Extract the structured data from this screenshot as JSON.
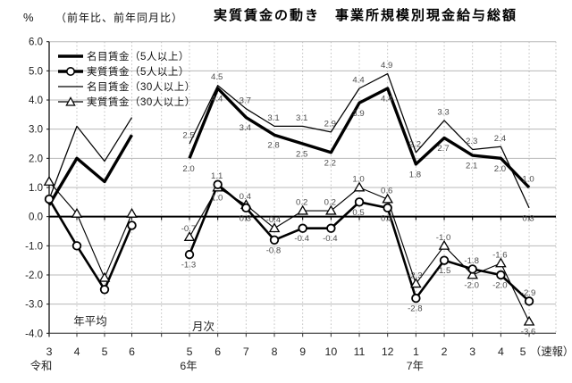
{
  "header": {
    "y_unit": "%",
    "subtitle": "（前年比、前年同月比）",
    "title": "実質賃金の動き　事業所規模別現金給与総額"
  },
  "chart_data": {
    "type": "line",
    "title": "実質賃金の動き　事業所規模別現金給与総額",
    "subtitle": "（前年比、前年同月比）",
    "ylabel": "%",
    "ylim": [
      -4.0,
      6.0
    ],
    "ytick_step": 1.0,
    "ytick_labels": [
      "6.0",
      "5.0",
      "4.0",
      "3.0",
      "2.0",
      "1.0",
      "0.0",
      "-1.0",
      "-2.0",
      "-3.0",
      "-4.0"
    ],
    "grid": true,
    "zero_line_emphasis": true,
    "legend": {
      "position": "top-left-inside",
      "items": [
        {
          "key": "nominal5",
          "label": "名目賃金（5人以上）",
          "line": "thick",
          "marker": "none"
        },
        {
          "key": "real5",
          "label": "実質賃金（5人以上）",
          "line": "thick",
          "marker": "circle"
        },
        {
          "key": "nominal30",
          "label": "名目賃金（30人以上）",
          "line": "thin",
          "marker": "none"
        },
        {
          "key": "real30",
          "label": "実質賃金（30人以上）",
          "line": "thin",
          "marker": "triangle"
        }
      ]
    },
    "sections": [
      {
        "id": "annual",
        "label": "年平均",
        "era_label": "令和",
        "x_labels": [
          "3",
          "4",
          "5",
          "6"
        ],
        "point_labels": false,
        "series": {
          "nominal5": [
            0.4,
            2.0,
            1.2,
            2.8
          ],
          "real5": [
            0.6,
            -1.0,
            -2.5,
            -0.3
          ],
          "nominal30": [
            0.6,
            3.1,
            1.9,
            3.4
          ],
          "real30": [
            1.2,
            0.1,
            -2.1,
            0.1
          ]
        }
      },
      {
        "id": "monthly",
        "label": "月次",
        "x_labels": [
          "5",
          "6",
          "7",
          "8",
          "9",
          "10",
          "11",
          "12",
          "1",
          "2",
          "3",
          "4",
          "5"
        ],
        "last_label_suffix": "（速報）",
        "year_labels": [
          {
            "at": 0,
            "text": "6年"
          },
          {
            "at": 8,
            "text": "7年"
          }
        ],
        "point_labels": true,
        "series": {
          "nominal5": [
            2.0,
            4.4,
            3.4,
            2.8,
            2.5,
            2.2,
            3.9,
            4.4,
            1.8,
            2.7,
            2.1,
            2.0,
            1.0
          ],
          "real5": [
            -1.3,
            1.1,
            0.3,
            -0.8,
            -0.4,
            -0.4,
            0.5,
            0.3,
            -2.8,
            -1.5,
            -1.8,
            -2.0,
            -2.9
          ],
          "nominal30": [
            2.5,
            4.5,
            3.7,
            3.1,
            3.1,
            2.9,
            4.4,
            4.9,
            2.2,
            3.3,
            2.3,
            2.4,
            0.3
          ],
          "real30": [
            -0.7,
            1.0,
            0.4,
            -0.4,
            0.2,
            0.2,
            1.0,
            0.6,
            -2.3,
            -1.0,
            -2.0,
            -1.6,
            -3.6
          ]
        }
      }
    ],
    "colors": {
      "line": "#000000",
      "grid": "#b8b8b8",
      "axis": "#222222",
      "point_label": "#4d4d4d"
    }
  }
}
